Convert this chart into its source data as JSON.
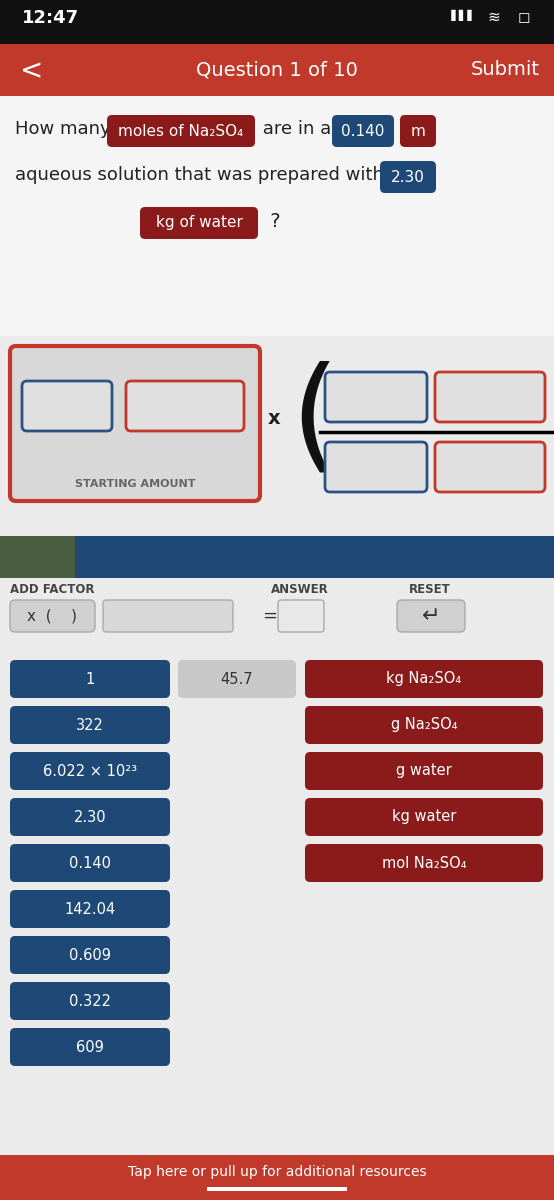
{
  "bg_color": "#ebebeb",
  "status_bar_color": "#111111",
  "nav_bar_color": "#c0392b",
  "nav_title": "Question 1 of 10",
  "nav_submit": "Submit",
  "nav_back": "<",
  "time": "12:47",
  "question_bg": "#f5f5f5",
  "question_line1_plain1": "How many ",
  "question_highlight1": "moles of Na₂SO₄",
  "question_line1_plain2": " are in a ",
  "question_blue1": "0.140",
  "question_red1": "m",
  "question_line2_plain": "aqueous solution that was prepared with ",
  "question_blue2": "2.30",
  "question_line3_red": "kg of water",
  "question_line3_plain": " ?",
  "starting_amount_label": "STARTING AMOUNT",
  "starting_box_bg": "#d8d8d8",
  "starting_box_border": "#c0392b",
  "input_box_blue_border": "#2c5282",
  "input_box_red_border": "#c0392b",
  "input_box_bg": "#e0e0e0",
  "section_divider_left_color": "#4a5e40",
  "section_divider_right_color": "#1e4976",
  "add_factor_label": "ADD FACTOR",
  "answer_label": "ANSWER",
  "reset_label": "RESET",
  "dark_blue_btn": "#1e4976",
  "dark_red_btn": "#8b1a1a",
  "light_gray_btn": "#c8c8c8",
  "btn_text_color": "#ffffff",
  "gray_btn_text_color": "#333333",
  "num_buttons_left": [
    "1",
    "322",
    "6.022 × 10²³",
    "2.30",
    "0.140",
    "142.04",
    "0.609",
    "0.322",
    "609"
  ],
  "num_buttons_middle": [
    "45.7"
  ],
  "label_buttons_right": [
    "kg Na₂SO₄",
    "g Na₂SO₄",
    "g water",
    "kg water",
    "mol Na₂SO₄"
  ],
  "bottom_bar_color": "#c0392b",
  "bottom_bar_text": "Tap here or pull up for additional resources"
}
